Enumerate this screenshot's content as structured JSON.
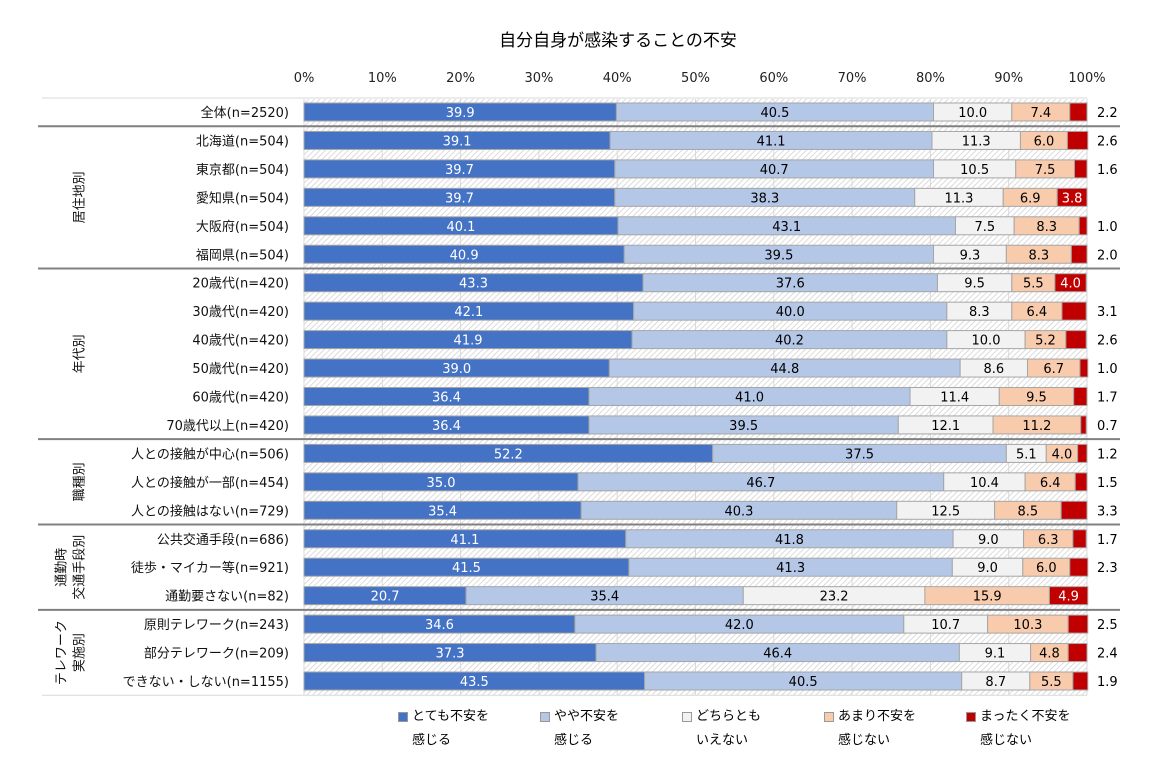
{
  "chart_data": {
    "type": "bar",
    "orientation": "horizontal",
    "stacked": "percent",
    "title": "自分自身が感染することの不安",
    "xlabel": "",
    "ylabel": "",
    "xlim": [
      0,
      100
    ],
    "x_ticks": [
      "0%",
      "10%",
      "20%",
      "30%",
      "40%",
      "50%",
      "60%",
      "70%",
      "80%",
      "90%",
      "100%"
    ],
    "grid": true,
    "legend_position": "bottom",
    "series": [
      {
        "name": "とても不安を感じる",
        "legend_line1": "とても不安を",
        "legend_line2": "感じる",
        "color": "#4472C4",
        "label_color": "#ffffff"
      },
      {
        "name": "やや不安を感じる",
        "legend_line1": "やや不安を",
        "legend_line2": "感じる",
        "color": "#B4C7E7",
        "label_color": "#000000"
      },
      {
        "name": "どちらともいえない",
        "legend_line1": "どちらとも",
        "legend_line2": "いえない",
        "color": "#F2F2F2",
        "label_color": "#000000"
      },
      {
        "name": "あまり不安を感じない",
        "legend_line1": "あまり不安を",
        "legend_line2": "感じない",
        "color": "#F8CBAD",
        "label_color": "#000000"
      },
      {
        "name": "まったく不安を感じない",
        "legend_line1": "まったく不安を",
        "legend_line2": "感じない",
        "color": "#C00000",
        "label_color": "#ffffff"
      }
    ],
    "groups": [
      {
        "name": "",
        "lines": [],
        "rows": [
          {
            "label": "全体(n=2520)",
            "values": [
              39.9,
              40.5,
              10.0,
              7.4,
              2.2
            ],
            "last_label_inside": false
          }
        ]
      },
      {
        "name": "居住地別",
        "lines": [
          "居住地別"
        ],
        "rows": [
          {
            "label": "北海道(n=504)",
            "values": [
              39.1,
              41.1,
              11.3,
              6.0,
              2.6
            ],
            "last_label_inside": false
          },
          {
            "label": "東京都(n=504)",
            "values": [
              39.7,
              40.7,
              10.5,
              7.5,
              1.6
            ],
            "last_label_inside": false
          },
          {
            "label": "愛知県(n=504)",
            "values": [
              39.7,
              38.3,
              11.3,
              6.9,
              3.8
            ],
            "last_label_inside": true
          },
          {
            "label": "大阪府(n=504)",
            "values": [
              40.1,
              43.1,
              7.5,
              8.3,
              1.0
            ],
            "last_label_inside": false
          },
          {
            "label": "福岡県(n=504)",
            "values": [
              40.9,
              39.5,
              9.3,
              8.3,
              2.0
            ],
            "last_label_inside": false
          }
        ]
      },
      {
        "name": "年代別",
        "lines": [
          "年代別"
        ],
        "rows": [
          {
            "label": "20歳代(n=420)",
            "values": [
              43.3,
              37.6,
              9.5,
              5.5,
              4.0
            ],
            "last_label_inside": true
          },
          {
            "label": "30歳代(n=420)",
            "values": [
              42.1,
              40.0,
              8.3,
              6.4,
              3.1
            ],
            "last_label_inside": false
          },
          {
            "label": "40歳代(n=420)",
            "values": [
              41.9,
              40.2,
              10.0,
              5.2,
              2.6
            ],
            "last_label_inside": false
          },
          {
            "label": "50歳代(n=420)",
            "values": [
              39.0,
              44.8,
              8.6,
              6.7,
              1.0
            ],
            "last_label_inside": false
          },
          {
            "label": "60歳代(n=420)",
            "values": [
              36.4,
              41.0,
              11.4,
              9.5,
              1.7
            ],
            "last_label_inside": false
          },
          {
            "label": "70歳代以上(n=420)",
            "values": [
              36.4,
              39.5,
              12.1,
              11.2,
              0.7
            ],
            "last_label_inside": false
          }
        ]
      },
      {
        "name": "職種別",
        "lines": [
          "職種別"
        ],
        "rows": [
          {
            "label": "人との接触が中心(n=506)",
            "values": [
              52.2,
              37.5,
              5.1,
              4.0,
              1.2
            ],
            "last_label_inside": false
          },
          {
            "label": "人との接触が一部(n=454)",
            "values": [
              35.0,
              46.7,
              10.4,
              6.4,
              1.5
            ],
            "last_label_inside": false
          },
          {
            "label": "人との接触はない(n=729)",
            "values": [
              35.4,
              40.3,
              12.5,
              8.5,
              3.3
            ],
            "last_label_inside": false
          }
        ]
      },
      {
        "name": "通勤時交通手段別",
        "lines": [
          "通勤時",
          "交通手段別"
        ],
        "rows": [
          {
            "label": "公共交通手段(n=686)",
            "values": [
              41.1,
              41.8,
              9.0,
              6.3,
              1.7
            ],
            "last_label_inside": false
          },
          {
            "label": "徒歩・マイカー等(n=921)",
            "values": [
              41.5,
              41.3,
              9.0,
              6.0,
              2.3
            ],
            "last_label_inside": false
          },
          {
            "label": "通勤要さない(n=82)",
            "values": [
              20.7,
              35.4,
              23.2,
              15.9,
              4.9
            ],
            "last_label_inside": true
          }
        ]
      },
      {
        "name": "テレワーク実施別",
        "lines": [
          "テレワーク",
          "実施別"
        ],
        "rows": [
          {
            "label": "原則テレワーク(n=243)",
            "values": [
              34.6,
              42.0,
              10.7,
              10.3,
              2.5
            ],
            "last_label_inside": false
          },
          {
            "label": "部分テレワーク(n=209)",
            "values": [
              37.3,
              46.4,
              9.1,
              4.8,
              2.4
            ],
            "last_label_inside": false
          },
          {
            "label": "できない・しない(n=1155)",
            "values": [
              43.5,
              40.5,
              8.7,
              5.5,
              1.9
            ],
            "last_label_inside": false
          }
        ]
      }
    ]
  }
}
